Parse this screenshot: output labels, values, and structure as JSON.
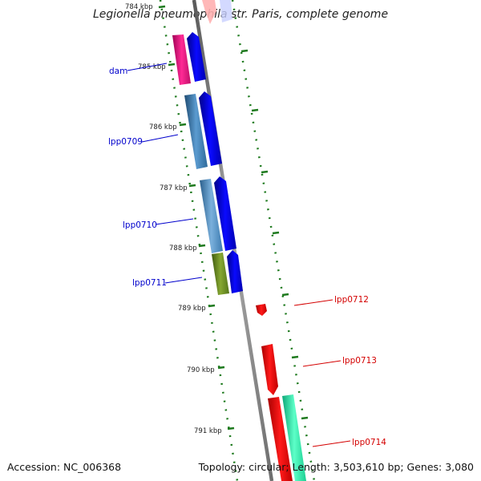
{
  "title": "Legionella pneumophila str. Paris, complete genome",
  "footer": {
    "accession": "Accession: NC_006368",
    "summary": "Topology: circular; Length: 3,503,610 bp; Genes: 3,080"
  },
  "ticks": [
    "784 kbp",
    "785 kbp",
    "786 kbp",
    "787 kbp",
    "788 kbp",
    "789 kbp",
    "790 kbp",
    "791 kbp"
  ],
  "gene_labels": {
    "dam": "dam",
    "lpp0709": "lpp0709",
    "lpp0710": "lpp0710",
    "lpp0711": "lpp0711",
    "lpp0712": "lpp0712",
    "lpp0713": "lpp0713",
    "lpp0714": "lpp0714"
  },
  "colors": {
    "backbone": "#808080",
    "forward_cds": "#0000ee",
    "reverse_cds": "#ff0000",
    "tick": "#1e7a1e",
    "dam_feature": "#e6157f",
    "lpp0709_feature": "#3a7fb5",
    "lpp0710_feature": "#4a8cc4",
    "lpp0711_feature": "#6b8c1e",
    "lpp0714_feature": "#20e0a0",
    "label_forward": "#0000cc",
    "label_reverse": "#d40000"
  }
}
